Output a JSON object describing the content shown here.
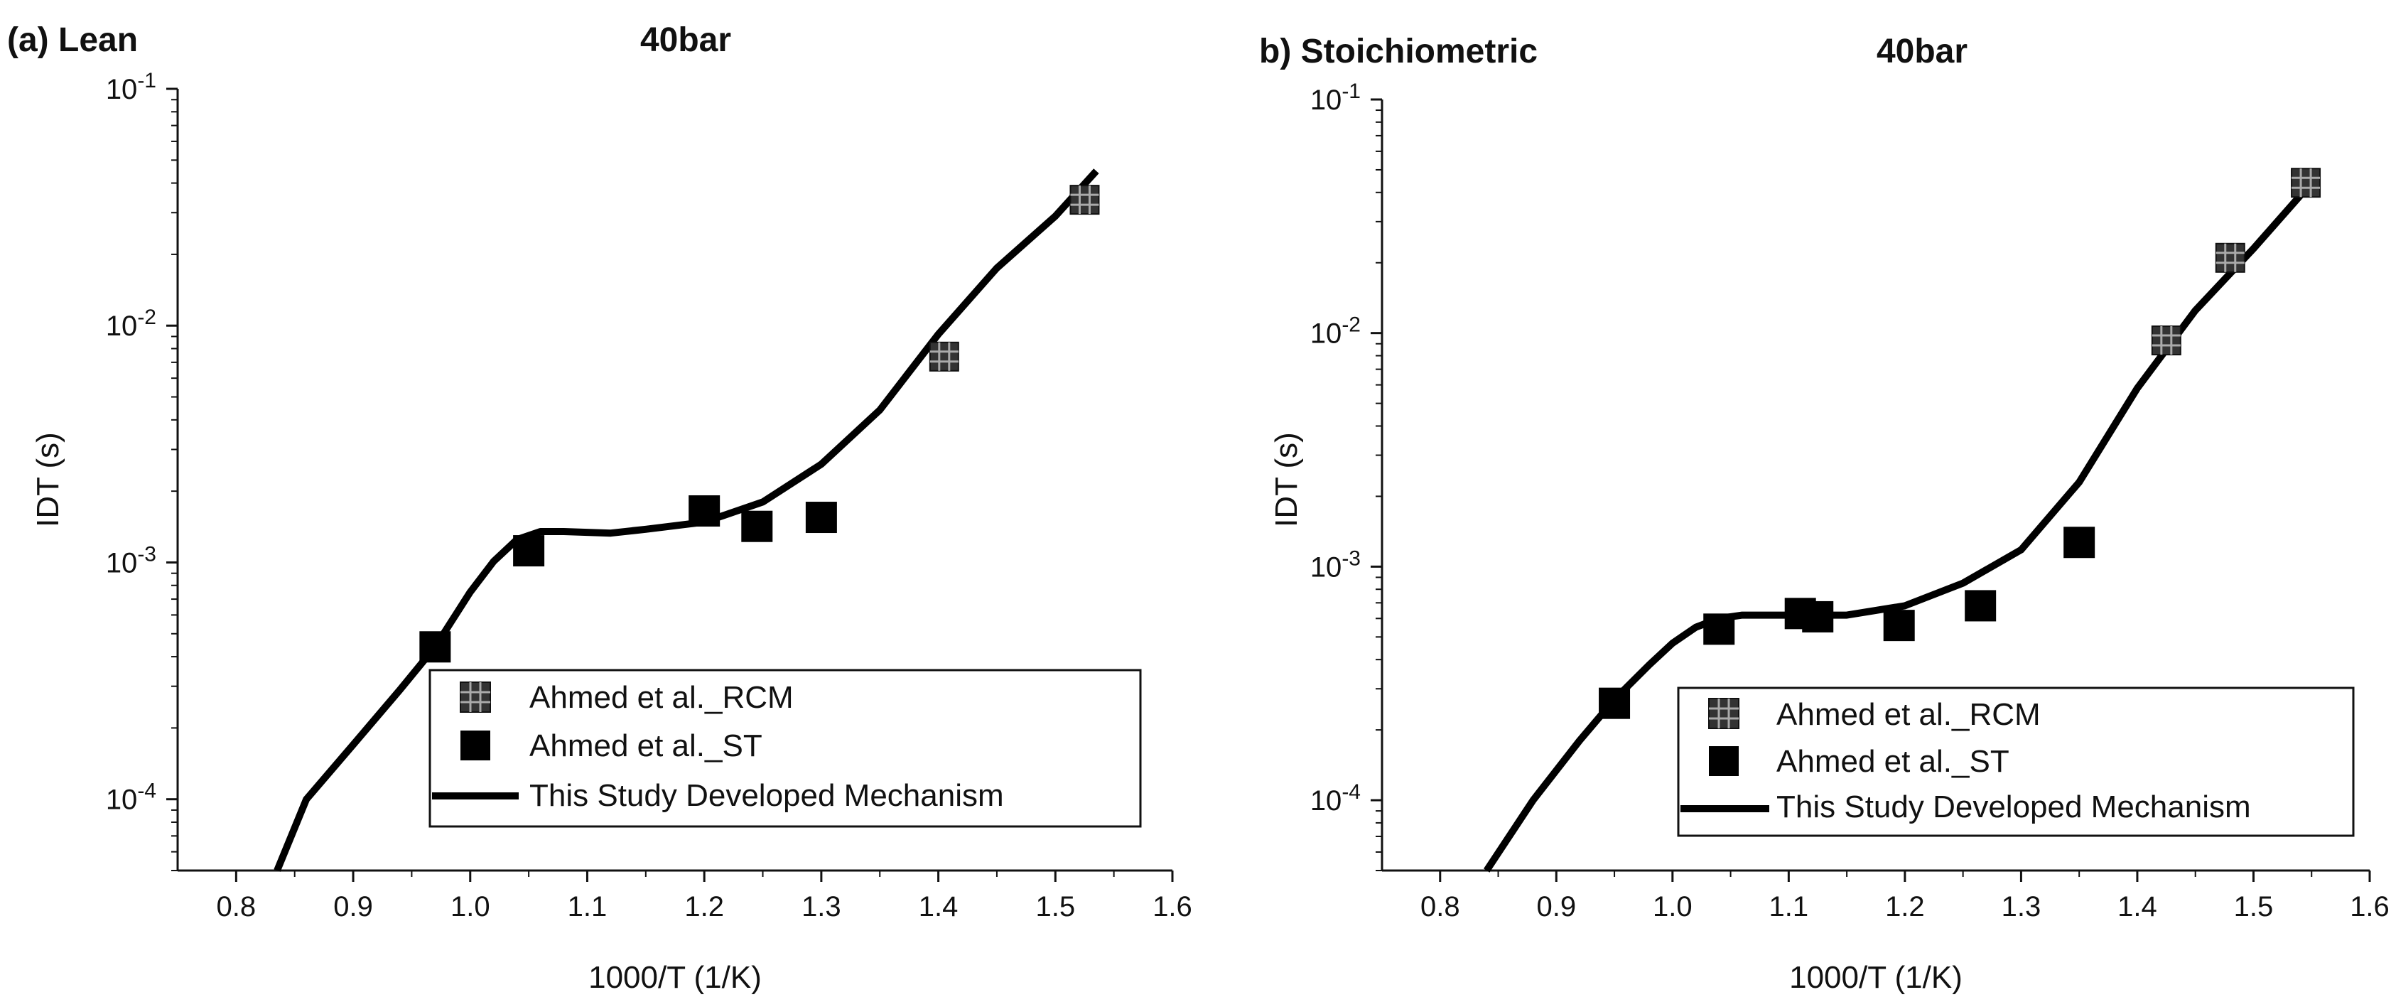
{
  "chart_data": [
    {
      "type": "scatter",
      "panel_label": "(a) Lean",
      "title": "40bar",
      "xlabel": "1000/T (1/K)",
      "ylabel": "IDT (s)",
      "xlim": [
        0.75,
        1.6
      ],
      "ylim": [
        5e-05,
        0.1
      ],
      "yscale": "log",
      "x_ticks": [
        "0.8",
        "0.9",
        "1.0",
        "1.1",
        "1.2",
        "1.3",
        "1.4",
        "1.5",
        "1.6"
      ],
      "y_ticks": [
        {
          "base": "10",
          "exp": "-4",
          "value": 0.0001
        },
        {
          "base": "10",
          "exp": "-3",
          "value": 0.001
        },
        {
          "base": "10",
          "exp": "-2",
          "value": 0.01
        },
        {
          "base": "10",
          "exp": "-1",
          "value": 0.1
        }
      ],
      "legend": [
        "Ahmed et al._RCM",
        "Ahmed et al._ST",
        "This Study Developed Mechanism"
      ],
      "series": [
        {
          "name": "Ahmed et al._RCM",
          "marker": "hatched-square",
          "x": [
            1.405,
            1.525
          ],
          "y": [
            0.0074,
            0.034
          ]
        },
        {
          "name": "Ahmed et al._ST",
          "marker": "square",
          "x": [
            0.97,
            1.05,
            1.2,
            1.245,
            1.3
          ],
          "y": [
            0.00044,
            0.00112,
            0.00165,
            0.00142,
            0.00155
          ]
        },
        {
          "name": "This Study Developed Mechanism",
          "marker": "line",
          "x": [
            0.835,
            0.86,
            0.9,
            0.94,
            0.97,
            1.0,
            1.02,
            1.04,
            1.06,
            1.08,
            1.1,
            1.12,
            1.15,
            1.2,
            1.25,
            1.3,
            1.35,
            1.4,
            1.45,
            1.5,
            1.535
          ],
          "y": [
            5e-05,
            0.0001,
            0.00017,
            0.00029,
            0.00044,
            0.00075,
            0.00101,
            0.00125,
            0.00135,
            0.00135,
            0.00134,
            0.00133,
            0.00138,
            0.00148,
            0.0018,
            0.0026,
            0.0044,
            0.0092,
            0.0175,
            0.029,
            0.045
          ]
        }
      ]
    },
    {
      "type": "scatter",
      "panel_label": "b) Stoichiometric",
      "title": "40bar",
      "xlabel": "1000/T (1/K)",
      "ylabel": "IDT (s)",
      "xlim": [
        0.75,
        1.6
      ],
      "ylim": [
        5e-05,
        0.1
      ],
      "yscale": "log",
      "x_ticks": [
        "0.8",
        "0.9",
        "1.0",
        "1.1",
        "1.2",
        "1.3",
        "1.4",
        "1.5",
        "1.6"
      ],
      "y_ticks": [
        {
          "base": "10",
          "exp": "-4",
          "value": 0.0001
        },
        {
          "base": "10",
          "exp": "-3",
          "value": 0.001
        },
        {
          "base": "10",
          "exp": "-2",
          "value": 0.01
        },
        {
          "base": "10",
          "exp": "-1",
          "value": 0.1
        }
      ],
      "legend": [
        "Ahmed et al._RCM",
        "Ahmed et al._ST",
        "This Study Developed Mechanism"
      ],
      "series": [
        {
          "name": "Ahmed et al._RCM",
          "marker": "hatched-square",
          "x": [
            1.425,
            1.48,
            1.545
          ],
          "y": [
            0.0093,
            0.021,
            0.044
          ]
        },
        {
          "name": "Ahmed et al._ST",
          "marker": "square",
          "x": [
            0.95,
            1.04,
            1.11,
            1.125,
            1.195,
            1.265,
            1.35
          ],
          "y": [
            0.00026,
            0.00054,
            0.00063,
            0.00061,
            0.00056,
            0.00068,
            0.00127
          ]
        },
        {
          "name": "This Study Developed Mechanism",
          "marker": "line",
          "x": [
            0.84,
            0.88,
            0.92,
            0.95,
            0.98,
            1.0,
            1.02,
            1.04,
            1.06,
            1.08,
            1.1,
            1.12,
            1.15,
            1.2,
            1.25,
            1.3,
            1.35,
            1.4,
            1.45,
            1.5,
            1.55
          ],
          "y": [
            5e-05,
            0.0001,
            0.00018,
            0.00027,
            0.00038,
            0.00047,
            0.00055,
            0.0006,
            0.00062,
            0.00062,
            0.00062,
            0.00062,
            0.00062,
            0.00068,
            0.00085,
            0.00118,
            0.0023,
            0.0058,
            0.0125,
            0.023,
            0.044
          ]
        }
      ]
    }
  ]
}
